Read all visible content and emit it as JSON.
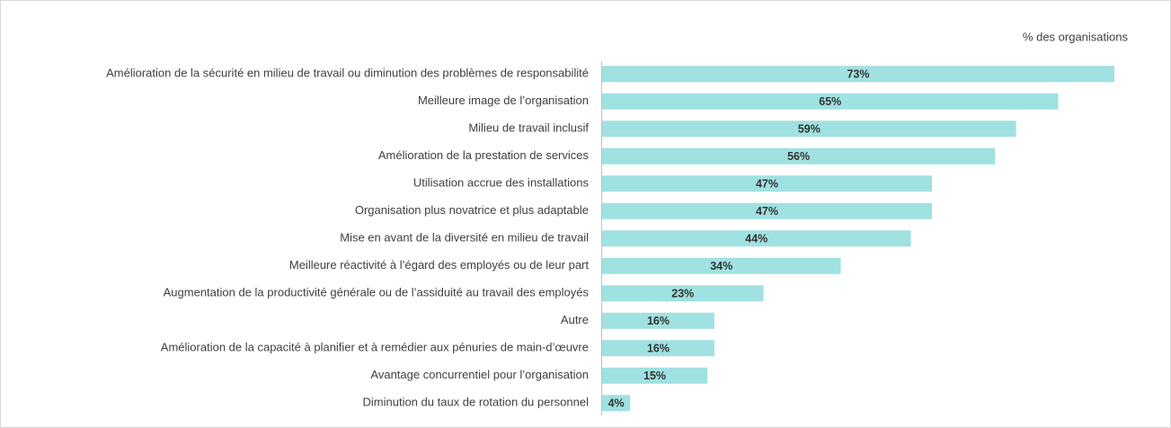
{
  "chart_data": {
    "type": "bar",
    "orientation": "horizontal",
    "subtitle": "% des organisations",
    "categories": [
      "Amélioration de la sécurité en milieu de travail ou diminution des problèmes de responsabilité",
      "Meilleure image de l’organisation",
      "Milieu de travail inclusif",
      "Amélioration de la prestation de services",
      "Utilisation accrue des installations",
      "Organisation plus novatrice et plus adaptable",
      "Mise en avant de la diversité en milieu de travail",
      "Meilleure réactivité à l’égard des employés ou de leur part",
      "Augmentation de la productivité générale ou de l’assiduité au travail des employés",
      "Autre",
      "Amélioration de la capacité à planifier et à remédier aux pénuries de main-d’œuvre",
      "Avantage concurrentiel pour l’organisation",
      "Diminution du taux de rotation du personnel"
    ],
    "values": [
      73,
      65,
      59,
      56,
      47,
      47,
      44,
      34,
      23,
      16,
      16,
      15,
      4
    ],
    "value_labels": [
      "73%",
      "65%",
      "59%",
      "56%",
      "47%",
      "47%",
      "44%",
      "34%",
      "23%",
      "16%",
      "16%",
      "15%",
      "4%"
    ],
    "color": "#a0e1e1"
  }
}
